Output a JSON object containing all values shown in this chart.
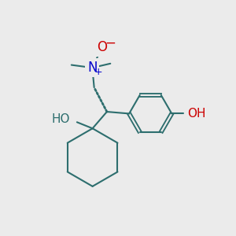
{
  "background_color": "#ebebeb",
  "figure_size": [
    3.0,
    3.0
  ],
  "dpi": 100,
  "atom_colors": {
    "O": "#cc0000",
    "N": "#0000cc",
    "C": "#2d6e6e",
    "H_label": "#2d6e6e"
  },
  "bond_color": "#2d6e6e",
  "bond_lw": 1.5,
  "font_size_atoms": 11
}
